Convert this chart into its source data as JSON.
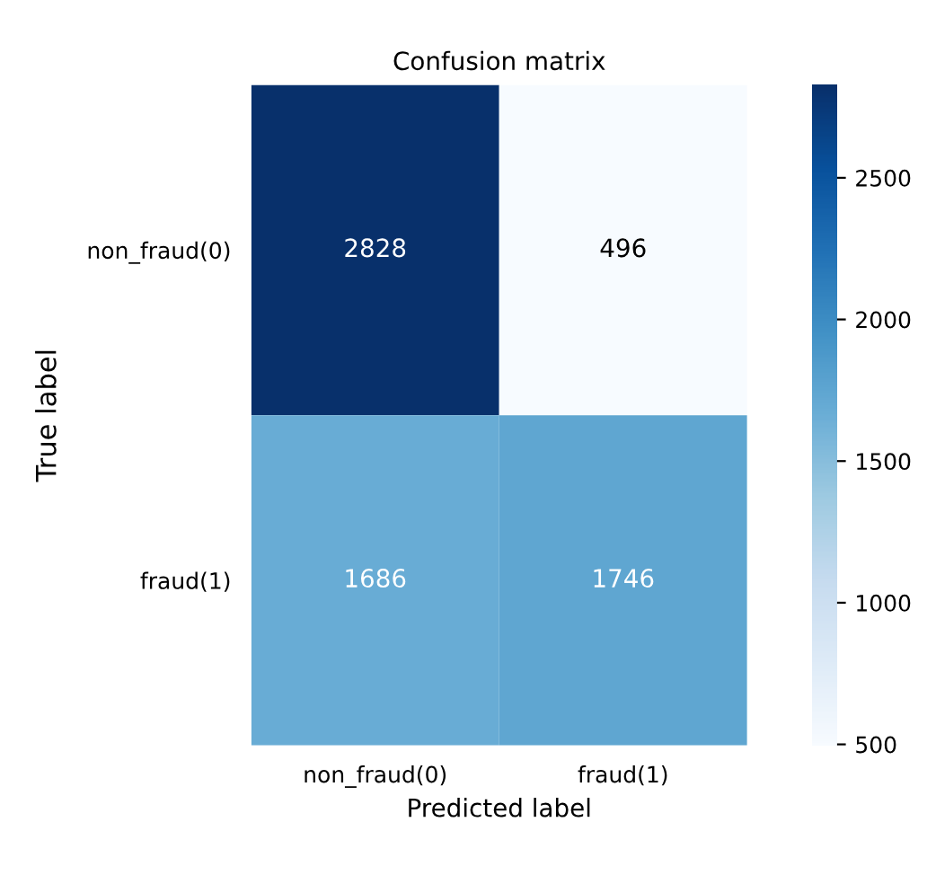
{
  "chart_data": {
    "type": "heatmap",
    "title": "Confusion matrix",
    "xlabel": "Predicted label",
    "ylabel": "True label",
    "categories": [
      "non_fraud(0)",
      "fraud(1)"
    ],
    "y_categories": [
      "non_fraud(0)",
      "fraud(1)"
    ],
    "cells": [
      [
        2828,
        496
      ],
      [
        1686,
        1746
      ]
    ],
    "clim": [
      496,
      2828
    ],
    "cticks": [
      500,
      1000,
      1500,
      2000,
      2500
    ],
    "data_labels": true,
    "grid": false
  }
}
